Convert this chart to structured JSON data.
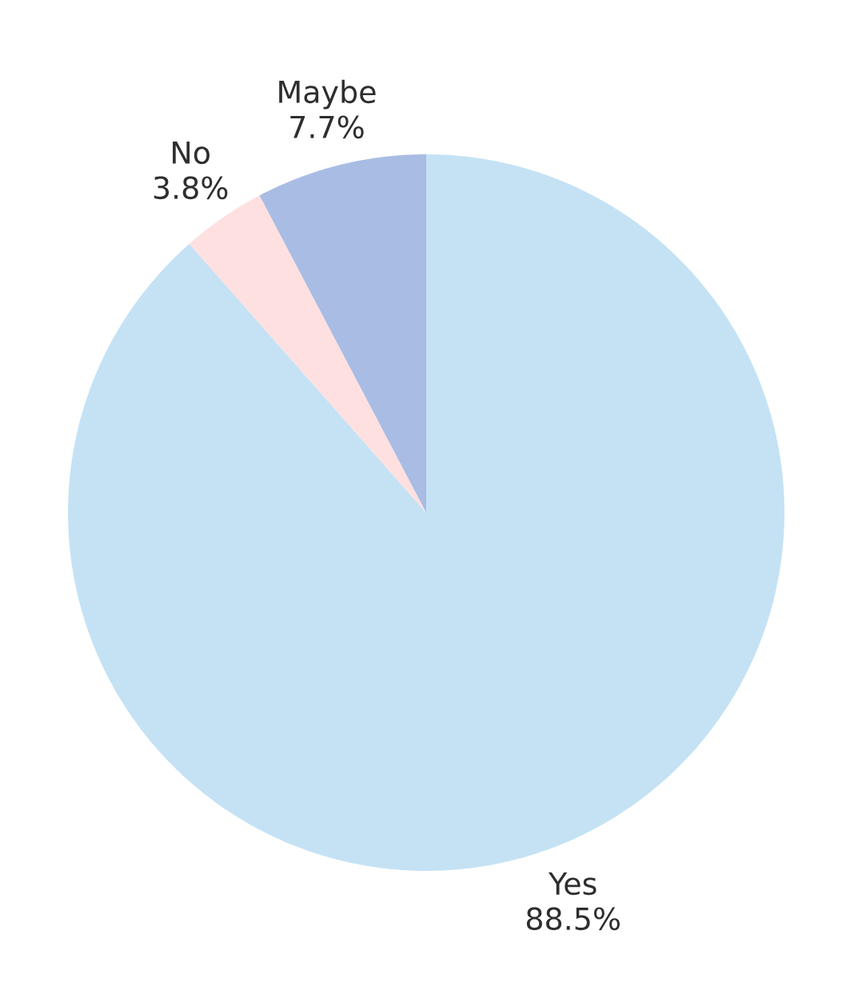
{
  "chart_data": {
    "type": "pie",
    "categories": [
      "Yes",
      "No",
      "Maybe"
    ],
    "values": [
      88.5,
      3.8,
      7.7
    ],
    "value_labels": [
      "88.5%",
      "3.8%",
      "7.7%"
    ],
    "colors": [
      "#c5e2f5",
      "#fee0e0",
      "#a9bce3"
    ]
  }
}
